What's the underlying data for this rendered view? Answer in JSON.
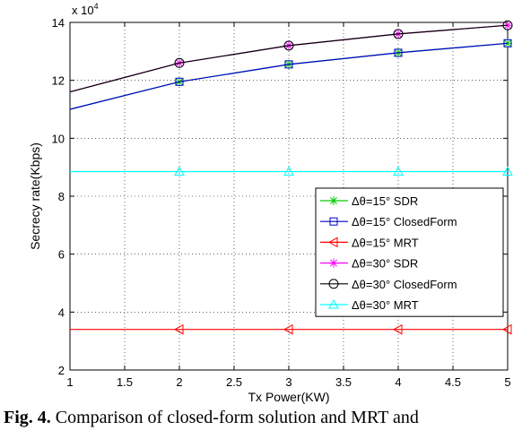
{
  "chart_data": {
    "type": "line",
    "title": "",
    "xlabel": "Tx Power(KW)",
    "ylabel": "Secrecy rate(Kbps)",
    "y_exponent_label": "x 10",
    "y_exponent_power": "4",
    "xlim": [
      1,
      5
    ],
    "ylim": [
      2,
      14
    ],
    "x_ticks": [
      "1",
      "1.5",
      "2",
      "2.5",
      "3",
      "3.5",
      "4",
      "4.5",
      "5"
    ],
    "y_ticks": [
      "2",
      "4",
      "6",
      "8",
      "10",
      "12",
      "14"
    ],
    "grid": true,
    "legend_position": "center-right",
    "x": [
      1,
      2,
      3,
      4,
      5
    ],
    "series": [
      {
        "name": "Δθ=15° SDR",
        "values": [
          11.0,
          11.95,
          12.55,
          12.95,
          13.28
        ],
        "color": "#00cc00",
        "marker": "star",
        "marker_on_first": false
      },
      {
        "name": "Δθ=15° ClosedForm",
        "values": [
          11.0,
          11.95,
          12.55,
          12.95,
          13.28
        ],
        "color": "#0000cc",
        "marker": "square",
        "marker_on_first": false
      },
      {
        "name": "Δθ=15° MRT",
        "values": [
          3.4,
          3.4,
          3.4,
          3.4,
          3.4
        ],
        "color": "#ff0000",
        "marker": "triangle-left",
        "marker_on_first": false
      },
      {
        "name": "Δθ=30° SDR",
        "values": [
          11.6,
          12.6,
          13.2,
          13.6,
          13.9
        ],
        "color": "#ff00ff",
        "marker": "star",
        "marker_on_first": false
      },
      {
        "name": "Δθ=30° ClosedForm",
        "values": [
          11.6,
          12.6,
          13.2,
          13.6,
          13.9
        ],
        "color": "#000000",
        "marker": "circle",
        "marker_on_first": false
      },
      {
        "name": "Δθ=30° MRT",
        "values": [
          8.85,
          8.85,
          8.85,
          8.85,
          8.85
        ],
        "color": "#00ffff",
        "marker": "triangle-up",
        "marker_on_first": false
      }
    ]
  },
  "caption": {
    "label": "Fig. 4.",
    "text": " Comparison of closed-form solution and MRT and"
  }
}
